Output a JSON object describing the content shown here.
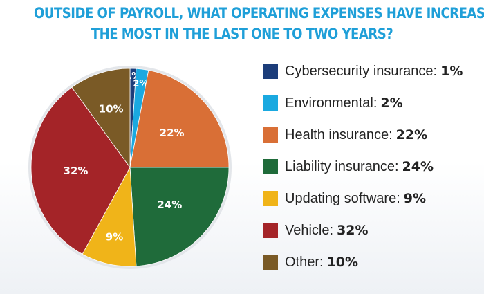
{
  "header": {
    "title_line1": "OUTSIDE OF PAYROLL, WHAT OPERATING EXPENSES HAVE INCREASED",
    "title_line2": "THE MOST IN THE LAST ONE TO TWO YEARS?"
  },
  "chart_data": {
    "type": "pie",
    "title": "OUTSIDE OF PAYROLL, WHAT OPERATING EXPENSES HAVE INCREASED THE MOST IN THE LAST ONE TO TWO YEARS?",
    "legend_position": "right",
    "slices": [
      {
        "label": "Cybersecurity insurance:",
        "value": 1,
        "value_label": "1%",
        "color": "#1c3d7a"
      },
      {
        "label": "Environmental:",
        "value": 2,
        "value_label": "2%",
        "color": "#1aa9e0"
      },
      {
        "label": "Health insurance:",
        "value": 22,
        "value_label": "22%",
        "color": "#d96f36"
      },
      {
        "label": "Liability insurance:",
        "value": 24,
        "value_label": "24%",
        "color": "#1f6b3a"
      },
      {
        "label": "Updating software:",
        "value": 9,
        "value_label": "9%",
        "color": "#f0b419"
      },
      {
        "label": "Vehicle:",
        "value": 32,
        "value_label": "32%",
        "color": "#a42428"
      },
      {
        "label": "Other:",
        "value": 10,
        "value_label": "10%",
        "color": "#7a5a26"
      }
    ]
  }
}
